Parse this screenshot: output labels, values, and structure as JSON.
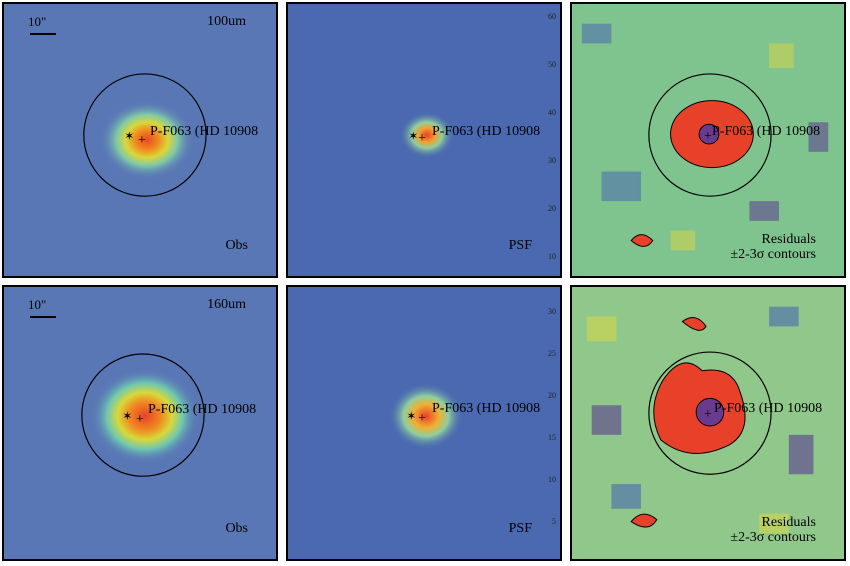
{
  "rows": [
    {
      "band": "100um",
      "scale": "10\"",
      "source": "P-F063 (HD 10908",
      "panels": {
        "obs": "Obs",
        "psf": "PSF",
        "residual": [
          "Residuals",
          "±2-3σ contours"
        ]
      },
      "ticks": [
        "60",
        "50",
        "40",
        "30",
        "20",
        "10"
      ]
    },
    {
      "band": "160um",
      "scale": "10\"",
      "source": "P-F063 (HD 10908",
      "panels": {
        "obs": "Obs",
        "psf": "PSF",
        "residual": [
          "Residuals",
          "±2-3σ contours"
        ]
      },
      "ticks": [
        "30",
        "25",
        "20",
        "15",
        "10",
        "5"
      ]
    }
  ],
  "colors": {
    "background": "#4a69b0",
    "peak": "#e8412a",
    "ring": "#000000"
  }
}
